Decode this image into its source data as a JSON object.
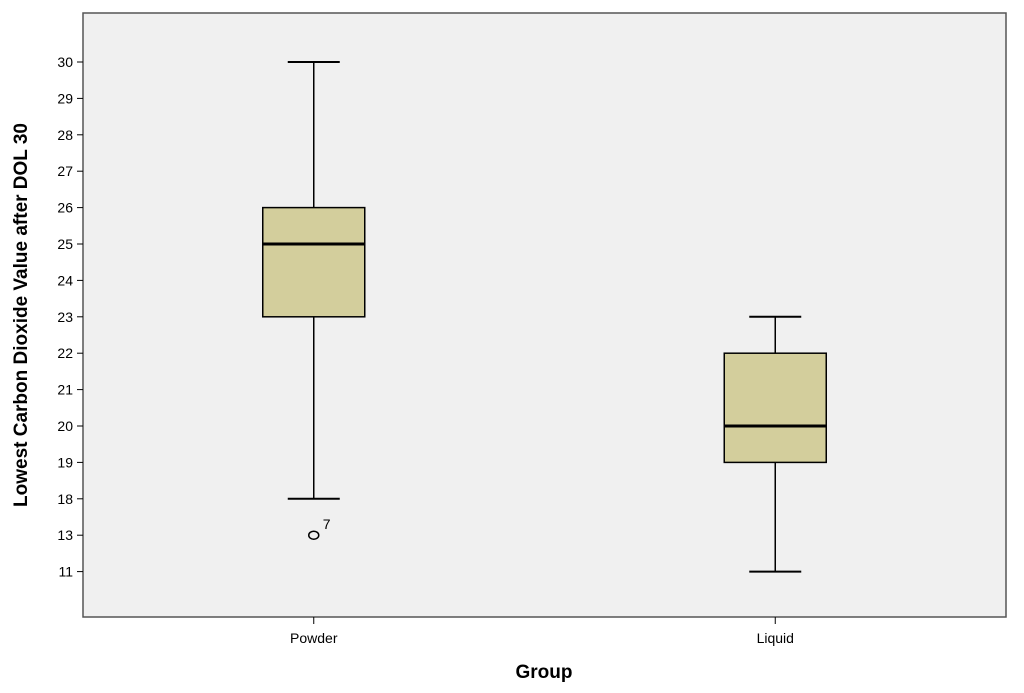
{
  "chart_data": {
    "type": "boxplot",
    "title": "",
    "xlabel": "Group",
    "ylabel": "Lowest Carbon Dioxide Value after DOL 30",
    "y_tick_labels": [
      "30",
      "29",
      "28",
      "27",
      "26",
      "25",
      "24",
      "23",
      "22",
      "21",
      "20",
      "19",
      "18",
      "13",
      "11"
    ],
    "categories": [
      "Powder",
      "Liquid"
    ],
    "boxes": [
      {
        "group": "Powder",
        "whisker_low": "18",
        "q1": "23",
        "median": "25",
        "q3": "26",
        "whisker_high": "30",
        "outliers": [
          {
            "value": "13",
            "label": "7"
          }
        ]
      },
      {
        "group": "Liquid",
        "whisker_low": "11",
        "q1": "19",
        "median": "20",
        "q3": "22",
        "whisker_high": "23",
        "outliers": []
      }
    ],
    "grid": false,
    "colors": {
      "plot_background": "#f0f0f0",
      "box_fill": "#d3ce9c",
      "line": "#000000"
    }
  }
}
